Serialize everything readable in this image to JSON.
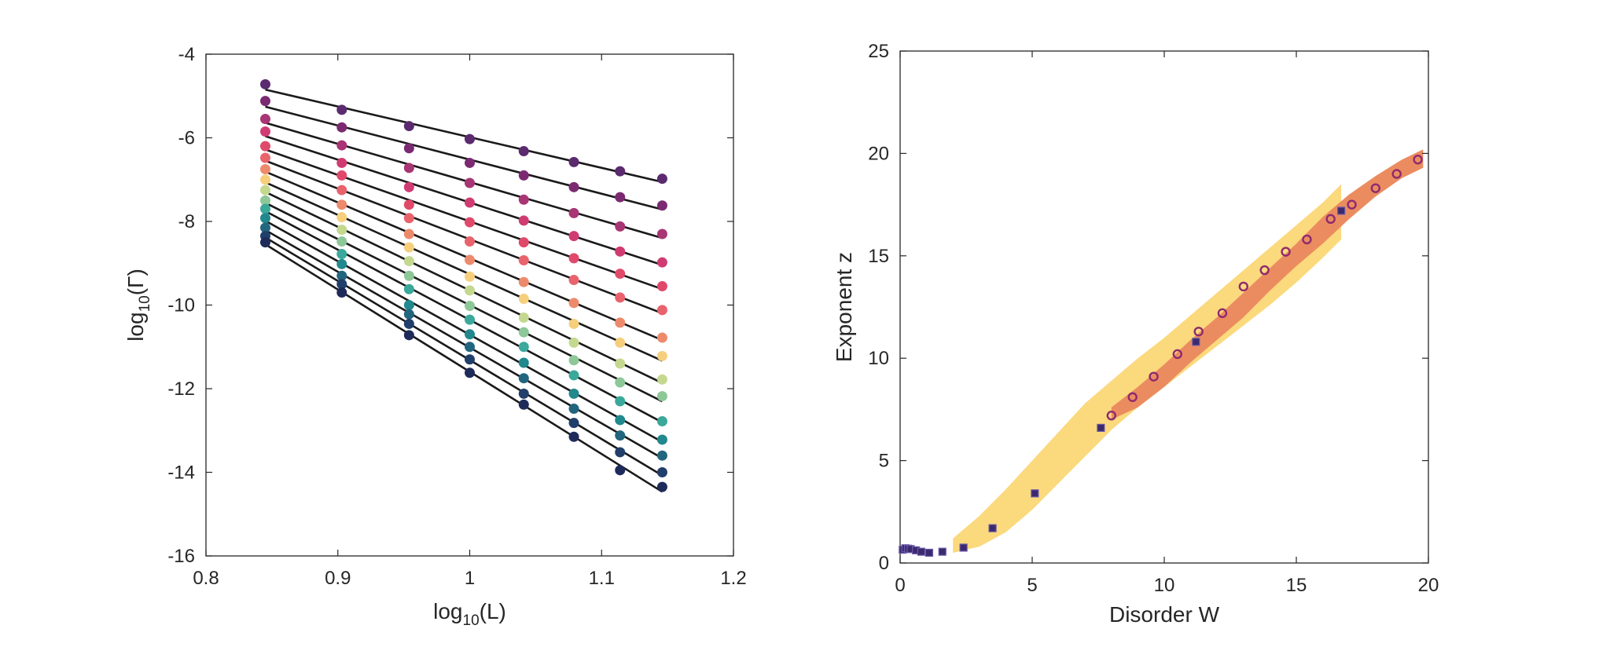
{
  "chart_data": [
    {
      "type": "scatter",
      "title": "",
      "xlabel": "log10(L)",
      "xlabel_base": "log",
      "xlabel_sub": "10",
      "xlabel_arg": "(L)",
      "ylabel": "log10(Γ)",
      "ylabel_base": "log",
      "ylabel_sub": "10",
      "ylabel_arg": "(Γ)",
      "xlim": [
        0.8,
        1.2
      ],
      "ylim": [
        -16,
        -4
      ],
      "xticks": [
        0.8,
        0.9,
        1,
        1.1,
        1.2
      ],
      "xtick_labels": [
        "0.8",
        "0.9",
        "1",
        "1.1",
        "1.2"
      ],
      "yticks": [
        -4,
        -6,
        -8,
        -10,
        -12,
        -14,
        -16
      ],
      "ytick_labels": [
        "-4",
        "-6",
        "-8",
        "-10",
        "-12",
        "-14",
        "-16"
      ],
      "x": [
        0.845,
        0.903,
        0.954,
        1.0,
        1.041,
        1.079,
        1.114,
        1.146
      ],
      "series": [
        {
          "color": "#5b2a6f",
          "values": [
            -4.72,
            -5.33,
            -5.72,
            -6.03,
            -6.32,
            -6.58,
            -6.8,
            -6.98
          ]
        },
        {
          "color": "#7b2a72",
          "values": [
            -5.12,
            -5.75,
            -6.25,
            -6.6,
            -6.9,
            -7.18,
            -7.42,
            -7.62
          ]
        },
        {
          "color": "#a83574",
          "values": [
            -5.55,
            -6.18,
            -6.72,
            -7.08,
            -7.48,
            -7.8,
            -8.12,
            -8.3
          ]
        },
        {
          "color": "#d03c72",
          "values": [
            -5.85,
            -6.6,
            -7.18,
            -7.55,
            -7.98,
            -8.35,
            -8.72,
            -8.98
          ]
        },
        {
          "color": "#e0496a",
          "values": [
            -6.2,
            -6.9,
            -7.6,
            -8.02,
            -8.5,
            -8.88,
            -9.25,
            -9.55
          ]
        },
        {
          "color": "#e8636c",
          "values": [
            -6.48,
            -7.25,
            -7.92,
            -8.48,
            -8.93,
            -9.4,
            -9.82,
            -10.12
          ]
        },
        {
          "color": "#ed8a6c",
          "values": [
            -6.75,
            -7.6,
            -8.3,
            -8.92,
            -9.45,
            -9.95,
            -10.42,
            -10.78
          ]
        },
        {
          "color": "#f6cf7d",
          "values": [
            -7.0,
            -7.9,
            -8.62,
            -9.32,
            -9.85,
            -10.45,
            -10.9,
            -11.22
          ]
        },
        {
          "color": "#c4d890",
          "values": [
            -7.25,
            -8.2,
            -8.95,
            -9.65,
            -10.3,
            -10.9,
            -11.4,
            -11.78
          ]
        },
        {
          "color": "#8ec798",
          "values": [
            -7.5,
            -8.48,
            -9.3,
            -10.02,
            -10.65,
            -11.32,
            -11.85,
            -12.18
          ]
        },
        {
          "color": "#3aa89b",
          "values": [
            -7.7,
            -8.78,
            -9.62,
            -10.35,
            -11.0,
            -11.68,
            -12.3,
            -12.78
          ]
        },
        {
          "color": "#21888e",
          "values": [
            -7.92,
            -9.02,
            -10.0,
            -10.7,
            -11.38,
            -12.12,
            -12.75,
            -13.22
          ]
        },
        {
          "color": "#22657f",
          "values": [
            -8.15,
            -9.3,
            -10.22,
            -11.0,
            -11.75,
            -12.48,
            -13.12,
            -13.6
          ]
        },
        {
          "color": "#213f6b",
          "values": [
            -8.35,
            -9.5,
            -10.45,
            -11.3,
            -12.12,
            -12.82,
            -13.52,
            -14.0
          ]
        },
        {
          "color": "#1e2b5a",
          "values": [
            -8.5,
            -9.7,
            -10.72,
            -11.62,
            -12.38,
            -13.15,
            -13.95,
            -14.35
          ]
        }
      ]
    },
    {
      "type": "scatter",
      "title": "",
      "xlabel": "Disorder W",
      "ylabel": "Exponent z",
      "xlim": [
        0,
        20
      ],
      "ylim": [
        0,
        25
      ],
      "xticks": [
        0,
        5,
        10,
        15,
        20
      ],
      "xtick_labels": [
        "0",
        "5",
        "10",
        "15",
        "20"
      ],
      "yticks": [
        0,
        5,
        10,
        15,
        20,
        25
      ],
      "ytick_labels": [
        "0",
        "5",
        "10",
        "15",
        "20",
        "25"
      ],
      "bands": [
        {
          "name": "yellow-band",
          "color": "#fbd97d",
          "x": [
            2.0,
            3.0,
            4.0,
            5.0,
            6.0,
            7.0,
            8.0,
            9.0,
            10.0,
            11.0,
            12.0,
            13.0,
            14.0,
            15.0,
            16.0,
            16.7
          ],
          "upper": [
            1.2,
            2.3,
            3.6,
            5.0,
            6.4,
            7.8,
            8.9,
            10.0,
            11.0,
            12.1,
            13.2,
            14.3,
            15.4,
            16.5,
            17.6,
            18.5
          ],
          "lower": [
            0.5,
            0.8,
            1.5,
            2.6,
            3.9,
            5.2,
            6.5,
            7.6,
            8.6,
            9.6,
            10.6,
            11.6,
            12.6,
            13.7,
            14.9,
            15.8
          ]
        },
        {
          "name": "orange-band",
          "color": "#eb8c60",
          "x": [
            8.0,
            9.0,
            10.0,
            11.0,
            12.0,
            13.0,
            14.0,
            15.0,
            16.0,
            17.0,
            18.0,
            19.0,
            19.8
          ],
          "upper": [
            7.6,
            8.6,
            9.7,
            10.9,
            12.0,
            13.2,
            14.4,
            15.6,
            16.9,
            18.0,
            18.9,
            19.7,
            20.2
          ],
          "lower": [
            7.0,
            7.6,
            8.6,
            9.8,
            10.9,
            12.0,
            13.3,
            14.5,
            15.6,
            16.8,
            17.9,
            18.8,
            19.3
          ]
        }
      ],
      "circles": {
        "color": "#8e2a6e",
        "x": [
          8.0,
          8.8,
          9.6,
          10.5,
          11.3,
          12.2,
          13.0,
          13.8,
          14.6,
          15.4,
          16.3,
          17.1,
          18.0,
          18.8,
          19.6
        ],
        "y": [
          7.2,
          8.1,
          9.1,
          10.2,
          11.3,
          12.2,
          13.5,
          14.3,
          15.2,
          15.8,
          16.8,
          17.5,
          18.3,
          19.0,
          19.7
        ]
      },
      "squares": {
        "color": "#3b2a6e",
        "x": [
          0.1,
          0.2,
          0.3,
          0.4,
          0.6,
          0.8,
          1.1,
          1.6,
          2.4,
          3.5,
          5.1,
          7.6,
          11.2,
          16.7
        ],
        "y": [
          0.65,
          0.72,
          0.7,
          0.68,
          0.62,
          0.55,
          0.5,
          0.55,
          0.75,
          1.7,
          3.4,
          6.6,
          10.8,
          17.2
        ]
      }
    }
  ]
}
